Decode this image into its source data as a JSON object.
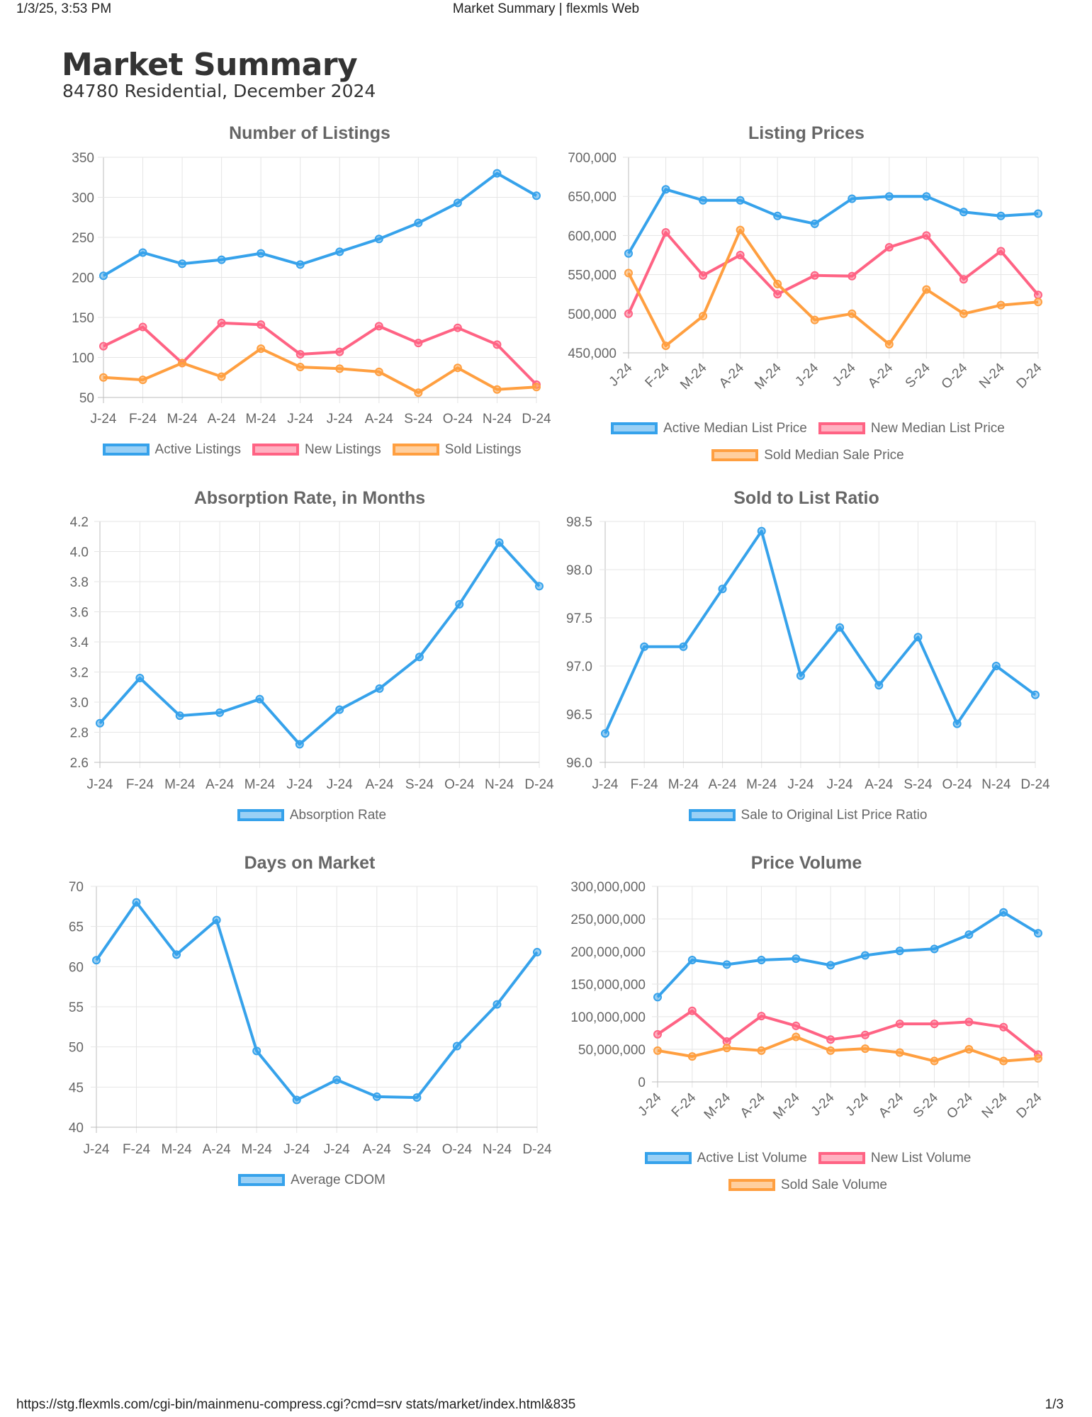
{
  "browser": {
    "datetime": "1/3/25, 3:53 PM",
    "page_title": "Market Summary | flexmls Web",
    "url": "https://stg.flexmls.com/cgi-bin/mainmenu-compress.cgi?cmd=srv stats/market/index.html&835",
    "page_number": "1/3"
  },
  "report": {
    "title": "Market Summary",
    "subtitle": "84780 Residential, December 2024"
  },
  "colors": {
    "blue": "#36a2eb",
    "red": "#ff6384",
    "orange": "#ff9f40"
  },
  "chart_data": [
    {
      "type": "line",
      "title": "Number of Listings",
      "categories": [
        "J-24",
        "F-24",
        "M-24",
        "A-24",
        "M-24",
        "J-24",
        "J-24",
        "A-24",
        "S-24",
        "O-24",
        "N-24",
        "D-24"
      ],
      "ylim": [
        50,
        350
      ],
      "yticks": [
        "350",
        "300",
        "250",
        "200",
        "150",
        "100",
        "50"
      ],
      "grid": true,
      "legend_position": "bottom",
      "series": [
        {
          "name": "Active Listings",
          "color": "blue",
          "values": [
            202,
            231,
            217,
            222,
            230,
            216,
            232,
            248,
            268,
            293,
            330,
            302
          ]
        },
        {
          "name": "New Listings",
          "color": "red",
          "values": [
            114,
            138,
            93,
            143,
            141,
            104,
            107,
            139,
            118,
            137,
            116,
            66
          ]
        },
        {
          "name": "Sold Listings",
          "color": "orange",
          "values": [
            75,
            72,
            93,
            76,
            111,
            88,
            86,
            82,
            56,
            87,
            60,
            63
          ]
        }
      ]
    },
    {
      "type": "line",
      "title": "Listing Prices",
      "categories": [
        "J-24",
        "F-24",
        "M-24",
        "A-24",
        "M-24",
        "J-24",
        "J-24",
        "A-24",
        "S-24",
        "O-24",
        "N-24",
        "D-24"
      ],
      "ylim": [
        450000,
        700000
      ],
      "yticks": [
        "700,000",
        "650,000",
        "600,000",
        "550,000",
        "500,000",
        "450,000"
      ],
      "grid": true,
      "legend_position": "bottom",
      "series": [
        {
          "name": "Active Median List Price",
          "color": "blue",
          "values": [
            577000,
            659000,
            645000,
            645000,
            625000,
            615000,
            647000,
            650000,
            650000,
            630000,
            625000,
            628000
          ]
        },
        {
          "name": "New Median List Price",
          "color": "red",
          "values": [
            500000,
            604000,
            549000,
            575000,
            525000,
            549000,
            548000,
            585000,
            600000,
            544000,
            580000,
            524000
          ]
        },
        {
          "name": "Sold Median Sale Price",
          "color": "orange",
          "values": [
            552000,
            459000,
            497000,
            607000,
            538000,
            492000,
            500000,
            461000,
            531000,
            500000,
            511000,
            515000
          ]
        }
      ]
    },
    {
      "type": "line",
      "title": "Absorption Rate, in Months",
      "categories": [
        "J-24",
        "F-24",
        "M-24",
        "A-24",
        "M-24",
        "J-24",
        "J-24",
        "A-24",
        "S-24",
        "O-24",
        "N-24",
        "D-24"
      ],
      "ylim": [
        2.6,
        4.2
      ],
      "yticks": [
        "4.2",
        "4.0",
        "3.8",
        "3.6",
        "3.4",
        "3.2",
        "3.0",
        "2.8",
        "2.6"
      ],
      "grid": true,
      "legend_position": "bottom",
      "series": [
        {
          "name": "Absorption Rate",
          "color": "blue",
          "values": [
            2.86,
            3.16,
            2.91,
            2.93,
            3.02,
            2.72,
            2.95,
            3.09,
            3.3,
            3.65,
            4.06,
            3.77
          ]
        }
      ]
    },
    {
      "type": "line",
      "title": "Sold to List Ratio",
      "categories": [
        "J-24",
        "F-24",
        "M-24",
        "A-24",
        "M-24",
        "J-24",
        "J-24",
        "A-24",
        "S-24",
        "O-24",
        "N-24",
        "D-24"
      ],
      "ylim": [
        96.0,
        98.5
      ],
      "yticks": [
        "98.5",
        "98.0",
        "97.5",
        "97.0",
        "96.5",
        "96.0"
      ],
      "grid": true,
      "legend_position": "bottom",
      "series": [
        {
          "name": "Sale to Original List Price Ratio",
          "color": "blue",
          "values": [
            96.3,
            97.2,
            97.2,
            97.8,
            98.4,
            96.9,
            97.4,
            96.8,
            97.3,
            96.4,
            97.0,
            96.7
          ]
        }
      ]
    },
    {
      "type": "line",
      "title": "Days on Market",
      "categories": [
        "J-24",
        "F-24",
        "M-24",
        "A-24",
        "M-24",
        "J-24",
        "J-24",
        "A-24",
        "S-24",
        "O-24",
        "N-24",
        "D-24"
      ],
      "ylim": [
        40,
        70
      ],
      "yticks": [
        "70",
        "65",
        "60",
        "55",
        "50",
        "45",
        "40"
      ],
      "grid": true,
      "legend_position": "bottom",
      "series": [
        {
          "name": "Average CDOM",
          "color": "blue",
          "values": [
            60.8,
            68.0,
            61.5,
            65.8,
            49.5,
            43.4,
            45.9,
            43.8,
            43.7,
            50.1,
            55.3,
            61.8
          ]
        }
      ]
    },
    {
      "type": "line",
      "title": "Price Volume",
      "categories": [
        "J-24",
        "F-24",
        "M-24",
        "A-24",
        "M-24",
        "J-24",
        "J-24",
        "A-24",
        "S-24",
        "O-24",
        "N-24",
        "D-24"
      ],
      "ylim": [
        0,
        300000000
      ],
      "yticks": [
        "300,000,000",
        "250,000,000",
        "200,000,000",
        "150,000,000",
        "100,000,000",
        "50,000,000",
        "0"
      ],
      "grid": true,
      "legend_position": "bottom",
      "series": [
        {
          "name": "Active List Volume",
          "color": "blue",
          "values": [
            130000000,
            187000000,
            180000000,
            187000000,
            189000000,
            179000000,
            194000000,
            201000000,
            204000000,
            226000000,
            260000000,
            228000000
          ]
        },
        {
          "name": "New List Volume",
          "color": "red",
          "values": [
            73000000,
            109000000,
            62000000,
            101000000,
            86000000,
            65000000,
            72000000,
            89000000,
            89000000,
            92000000,
            84000000,
            42000000
          ]
        },
        {
          "name": "Sold Sale Volume",
          "color": "orange",
          "values": [
            48000000,
            39000000,
            52000000,
            48000000,
            69000000,
            48000000,
            51000000,
            45000000,
            32000000,
            50000000,
            32000000,
            36000000
          ]
        }
      ]
    }
  ]
}
